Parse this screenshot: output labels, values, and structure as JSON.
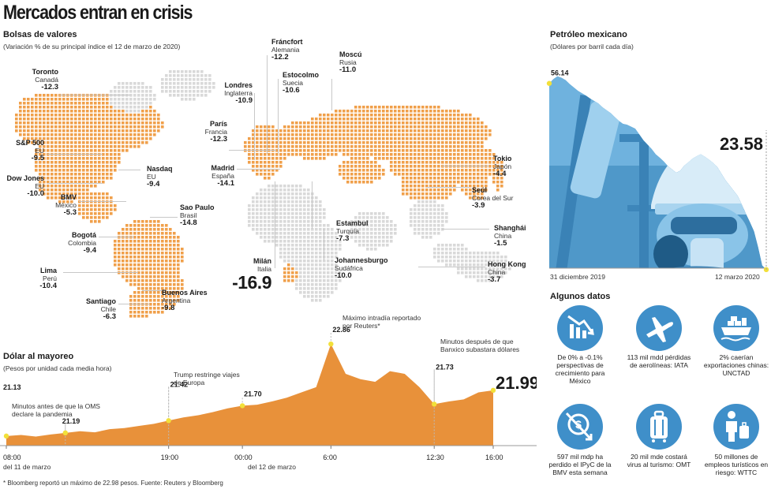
{
  "title": "Mercados entran en crisis",
  "stocks": {
    "heading": "Bolsas de valores",
    "subheading": "(Variación % de su principal índice el 12 de marzo de 2020)",
    "markets": [
      {
        "city": "Toronto",
        "country": "Canadá",
        "value": "-12.3"
      },
      {
        "city": "S&P 500",
        "country": "EU",
        "value": "-9.5"
      },
      {
        "city": "Dow Jones",
        "country": "EU",
        "value": "-10.0"
      },
      {
        "city": "Nasdaq",
        "country": "EU",
        "value": "-9.4"
      },
      {
        "city": "BMV",
        "country": "México",
        "value": "-5.3"
      },
      {
        "city": "Bogotá",
        "country": "Colombia",
        "value": "-9.4"
      },
      {
        "city": "Sao Paulo",
        "country": "Brasil",
        "value": "-14.8"
      },
      {
        "city": "Lima",
        "country": "Perú",
        "value": "-10.4"
      },
      {
        "city": "Santiago",
        "country": "Chile",
        "value": "-6.3"
      },
      {
        "city": "Buenos Aires",
        "country": "Argentina",
        "value": "-9.8"
      },
      {
        "city": "Londres",
        "country": "Inglaterra",
        "value": "-10.9"
      },
      {
        "city": "París",
        "country": "Francia",
        "value": "-12.3"
      },
      {
        "city": "Madrid",
        "country": "España",
        "value": "-14.1"
      },
      {
        "city": "Fráncfort",
        "country": "Alemania",
        "value": "-12.2"
      },
      {
        "city": "Estocolmo",
        "country": "Suecia",
        "value": "-10.6"
      },
      {
        "city": "Moscú",
        "country": "Rusia",
        "value": "-11.0"
      },
      {
        "city": "Milán",
        "country": "Italia",
        "value": "-16.9"
      },
      {
        "city": "Estambul",
        "country": "Turquía",
        "value": "-7.3"
      },
      {
        "city": "Johannesburgo",
        "country": "Sudáfrica",
        "value": "-10.0"
      },
      {
        "city": "Tokio",
        "country": "Japón",
        "value": "-4.4"
      },
      {
        "city": "Seúl",
        "country": "Corea del Sur",
        "value": "-3.9"
      },
      {
        "city": "Shanghái",
        "country": "China",
        "value": "-1.5"
      },
      {
        "city": "Hong Kong",
        "country": "China",
        "value": "-3.7"
      }
    ]
  },
  "oil": {
    "heading": "Petróleo mexicano",
    "subheading": "(Dólares por barril cada día)",
    "start_label": "31 diciembre 2019",
    "end_label": "12 marzo 2020"
  },
  "dollar": {
    "heading": "Dólar al mayoreo",
    "subheading": "(Pesos por unidad cada media hora)",
    "day1_label": "del 11 de marzo",
    "day2_label": "del 12 de marzo",
    "annotations": [
      {
        "text": "Minutos antes de que la OMS declare la pandemia"
      },
      {
        "text": "Trump restringe viajes de Europa"
      },
      {
        "text": "Máximo intradía reportado por Reuters*"
      },
      {
        "text": "Minutos después de que Banxico subastara dólares"
      }
    ]
  },
  "facts": {
    "heading": "Algunos datos",
    "items": [
      {
        "icon": "chart-down-icon",
        "text": "De 0% a -0.1% perspectivas de crecimiento para México"
      },
      {
        "icon": "airplane-icon",
        "text": "113 mil mdd pérdidas de aerolíneas: IATA"
      },
      {
        "icon": "cargo-ship-icon",
        "text": "2% caerían exportaciones chinas: UNCTAD"
      },
      {
        "icon": "money-down-icon",
        "text": "597 mil mdp ha perdido el IPyC de la BMV esta semana"
      },
      {
        "icon": "suitcase-icon",
        "text": "20 mil mde costará virus al turismo: OMT"
      },
      {
        "icon": "tourist-icon",
        "text": "50 millones de empleos turísticos en riesgo: WTTC"
      }
    ]
  },
  "footnote": "* Bloomberg reportó un máximo de 22.98 pesos. Fuente: Reuters y Bloomberg",
  "colors": {
    "accent": "#f0a04b",
    "accent_dark": "#e8913a",
    "blue": "#3f8fc9",
    "land_gray": "#d9d9d9",
    "marker_yellow": "#f2e03a"
  },
  "chart_data": [
    {
      "type": "area",
      "title": "Dólar al mayoreo",
      "subtitle": "(Pesos por unidad cada media hora)",
      "x_tick_labels": [
        "08:00",
        "19:00",
        "00:00",
        "6:00",
        "12:30",
        "16:00"
      ],
      "x": [
        "08:00",
        "09:00",
        "10:00",
        "11:00",
        "12:00",
        "13:00",
        "14:00",
        "15:00",
        "16:00",
        "17:00",
        "18:00",
        "19:00",
        "20:00",
        "21:00",
        "22:00",
        "23:00",
        "00:00",
        "01:00",
        "02:00",
        "03:00",
        "04:00",
        "05:00",
        "06:00",
        "07:00",
        "08:00",
        "09:00",
        "10:00",
        "11:00",
        "12:00",
        "12:30",
        "13:30",
        "14:30",
        "15:30",
        "16:00"
      ],
      "values": [
        21.13,
        21.15,
        21.12,
        21.16,
        21.19,
        21.22,
        21.2,
        21.26,
        21.28,
        21.32,
        21.36,
        21.42,
        21.48,
        21.52,
        21.58,
        21.65,
        21.7,
        21.72,
        21.78,
        21.85,
        21.95,
        22.05,
        22.86,
        22.3,
        22.2,
        22.15,
        22.35,
        22.3,
        22.05,
        21.73,
        21.78,
        21.82,
        21.95,
        21.99
      ],
      "labeled_points": [
        {
          "x": "08:00",
          "value": "21.13"
        },
        {
          "x": "12:00",
          "value": "21.19"
        },
        {
          "x": "19:00",
          "value": "21.42"
        },
        {
          "x": "00:00",
          "value": "21.70"
        },
        {
          "x": "06:00",
          "value": "22.86"
        },
        {
          "x": "12:30",
          "value": "21.73"
        },
        {
          "x": "16:00",
          "value": "21.99"
        }
      ],
      "ylim": [
        20.95,
        23.1
      ]
    },
    {
      "type": "area",
      "title": "Petróleo mexicano",
      "subtitle": "(Dólares por barril cada día)",
      "x_tick_labels": [
        "31 diciembre 2019",
        "12 marzo 2020"
      ],
      "values": [
        56.14,
        57.0,
        57.6,
        57.3,
        56.8,
        56.0,
        55.3,
        54.6,
        54.1,
        53.6,
        53.0,
        52.5,
        52.0,
        51.2,
        50.6,
        50.0,
        49.2,
        48.4,
        47.8,
        47.6,
        47.2,
        46.8,
        45.6,
        44.4,
        43.5,
        42.6,
        41.5,
        40.8,
        40.0,
        39.3,
        38.8,
        38.3,
        38.6,
        39.4,
        39.9,
        40.6,
        41.1,
        41.5,
        41.0,
        40.4,
        39.8,
        39.2,
        38.2,
        37.2,
        36.4,
        35.6,
        34.8,
        33.5,
        32.1,
        30.8,
        29.4,
        27.0,
        24.2,
        23.58
      ],
      "labeled_points": [
        {
          "x": "31 diciembre 2019",
          "value": "56.14"
        },
        {
          "x": "12 marzo 2020",
          "value": "23.58"
        }
      ],
      "ylim": [
        18,
        60
      ]
    }
  ]
}
